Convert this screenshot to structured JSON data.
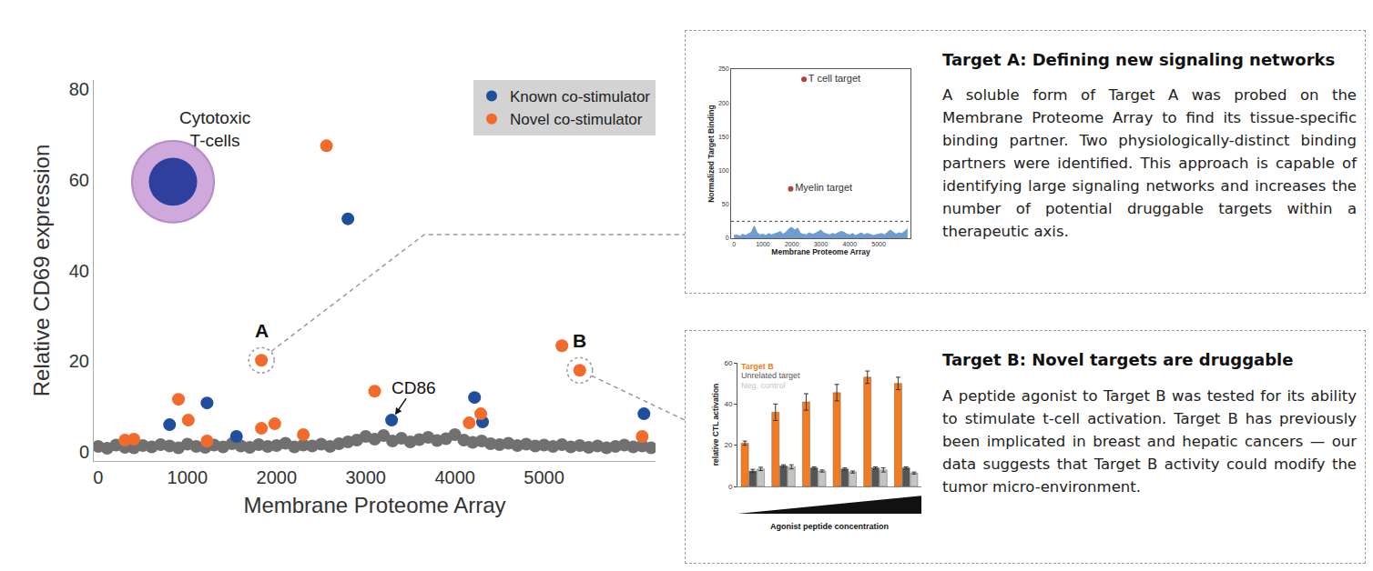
{
  "chart_data": [
    {
      "type": "scatter",
      "x_label": "Membrane Proteome Array",
      "y_label": "Relative CD69 expression",
      "xlim": [
        -50,
        6250
      ],
      "xticks": [
        0,
        1000,
        2000,
        3000,
        4000,
        5000
      ],
      "ylim": [
        -2,
        82
      ],
      "yticks": [
        0,
        20,
        40,
        60,
        80
      ],
      "grid": false,
      "legend": "top right",
      "series": [
        {
          "color": "#707070",
          "x": [
            0,
            100,
            200,
            300,
            400,
            500,
            600,
            700,
            800,
            900,
            1000,
            1100,
            1200,
            1300,
            1400,
            1500,
            1600,
            1700,
            1800,
            1900,
            2000,
            2100,
            2200,
            2300,
            2400,
            2500,
            2600,
            2700,
            2800,
            2900,
            3000,
            3100,
            3200,
            3300,
            3400,
            3500,
            3600,
            3700,
            3800,
            3900,
            4000,
            4100,
            4200,
            4300,
            4400,
            4500,
            4600,
            4700,
            4800,
            4900,
            5000,
            5100,
            5200,
            5300,
            5400,
            5500,
            5600,
            5700,
            5800,
            5900,
            6000,
            6100,
            6200
          ],
          "values": [
            1.2,
            0.8,
            1.5,
            1.0,
            0.9,
            1.4,
            1.1,
            1.6,
            1.3,
            0.9,
            1.7,
            1.2,
            1.0,
            1.5,
            1.1,
            1.8,
            1.3,
            1.0,
            1.6,
            1.2,
            1.4,
            1.9,
            1.1,
            1.5,
            1.3,
            1.7,
            1.2,
            1.8,
            2.2,
            2.6,
            3.4,
            2.8,
            3.6,
            2.4,
            3.0,
            2.2,
            2.7,
            3.2,
            2.5,
            2.9,
            3.8,
            2.6,
            2.1,
            2.4,
            1.8,
            1.6,
            1.9,
            1.4,
            1.7,
            1.3,
            1.5,
            1.2,
            1.6,
            1.1,
            1.4,
            1.0,
            1.3,
            0.9,
            1.2,
            1.5,
            1.1,
            1.3,
            0.9
          ]
        },
        {
          "name": "Known co-stimulator",
          "color": "#1f4e9c",
          "x": [
            800,
            1220,
            1550,
            2800,
            3290,
            4220,
            4310,
            6120
          ],
          "values": [
            6,
            10.8,
            3.4,
            51.4,
            7,
            12,
            6.6,
            8.4
          ]
        },
        {
          "name": "Novel co-stimulator",
          "color": "#f26b2c",
          "x": [
            300,
            400,
            900,
            1010,
            1220,
            1830,
            1830,
            1980,
            2300,
            2560,
            3100,
            4160,
            4290,
            5200,
            5400,
            6100
          ],
          "values": [
            2.6,
            2.8,
            11.6,
            7,
            2.4,
            20.2,
            5.2,
            6.2,
            3.8,
            67.5,
            13.4,
            6.4,
            8.4,
            23.4,
            18,
            3.4
          ]
        }
      ],
      "annotations": [
        {
          "text": "Cytotoxic\nT-cells"
        },
        {
          "text": "A",
          "x": 1830,
          "y": 20.2,
          "marker": "dashed circle"
        },
        {
          "text": "B",
          "x": 5400,
          "y": 18,
          "marker": "dashed circle"
        },
        {
          "text": "CD86",
          "x": 3290,
          "y": 7,
          "marker": "arrow"
        }
      ]
    },
    {
      "type": "area",
      "x_label": "Membrane Proteome Array",
      "y_label": "Normalized Target Binding",
      "xlim": [
        -100,
        6100
      ],
      "xticks": [
        0,
        1000,
        2000,
        3000,
        4000,
        5000
      ],
      "ylim": [
        0,
        250
      ],
      "yticks": [
        0,
        50,
        100,
        150,
        200,
        250
      ],
      "grid": false,
      "threshold": {
        "value": 25,
        "line_style": "dotted"
      },
      "series": [
        {
          "type": "area",
          "color": "#6f9bd1",
          "x": [
            0,
            100,
            200,
            300,
            400,
            500,
            600,
            700,
            800,
            900,
            1000,
            1100,
            1200,
            1300,
            1400,
            1500,
            1600,
            1700,
            1800,
            1900,
            2000,
            2100,
            2200,
            2300,
            2400,
            2500,
            2600,
            2700,
            2800,
            2900,
            3000,
            3100,
            3200,
            3300,
            3400,
            3500,
            3600,
            3700,
            3800,
            3900,
            4000,
            4100,
            4200,
            4300,
            4400,
            4500,
            4600,
            4700,
            4800,
            4900,
            5000,
            5100,
            5200,
            5300,
            5400,
            5500,
            5600,
            5700,
            5800,
            5900,
            6000
          ],
          "values": [
            4,
            5,
            3,
            6,
            4,
            7,
            9,
            18,
            8,
            5,
            6,
            4,
            7,
            5,
            6,
            8,
            10,
            6,
            9,
            14,
            16,
            12,
            15,
            7,
            6,
            5,
            8,
            6,
            7,
            9,
            12,
            8,
            6,
            5,
            7,
            6,
            8,
            10,
            9,
            6,
            5,
            7,
            4,
            6,
            8,
            5,
            7,
            6,
            4,
            5,
            6,
            7,
            5,
            8,
            12,
            9,
            6,
            8,
            7,
            10,
            14
          ]
        },
        {
          "type": "scatter",
          "color": "#b0413e",
          "x": [
            2420,
            1960
          ],
          "values": [
            235,
            73
          ],
          "point_labels": [
            "T cell target",
            "Myelin target"
          ]
        }
      ]
    },
    {
      "type": "bar",
      "x_label": "Agonist peptide concentration",
      "y_label": "relative CTL activation",
      "categories": [
        null,
        null,
        null,
        null,
        null,
        null
      ],
      "ylim": [
        0,
        60
      ],
      "yticks": [
        0,
        20,
        40,
        60
      ],
      "grid": false,
      "tick_labels": "y",
      "legend": "top left",
      "series": [
        {
          "name": "Target B",
          "color": "#f47b20",
          "values": [
            21,
            36,
            41,
            45.5,
            53,
            50
          ],
          "errors": [
            1,
            4,
            4,
            4,
            3,
            3
          ]
        },
        {
          "name": "Unrelated target",
          "color": "#555555",
          "values": [
            7.5,
            10,
            9,
            8.5,
            9,
            9
          ],
          "errors": [
            0.8,
            0.5,
            0.5,
            0.5,
            0.5,
            0.5
          ]
        },
        {
          "name": "Neg. control",
          "color": "#c4c4c4",
          "values": [
            8.5,
            9.5,
            7.5,
            7,
            8,
            6.5
          ],
          "errors": [
            0.8,
            1,
            0.5,
            0.5,
            1,
            0.5
          ]
        }
      ]
    }
  ],
  "panels": [
    {
      "title": "Target A: Defining new signaling networks",
      "text": "A soluble form of Target A  was probed on the  Membrane Proteome Array to find its tissue-specific binding partner. Two physiologically-distinct binding partners were identified. This approach is capable of identifying large signaling networks and increases the number of potential druggable targets within a therapeutic axis."
    },
    {
      "title": "Target B: Novel targets are druggable",
      "text": "A peptide agonist to Target B  was tested for its ability to stimulate t-cell activation. Target B has previously been implicated in breast and hepatic cancers — our data suggests that Target B activity could modify the tumor micro-environment."
    }
  ]
}
